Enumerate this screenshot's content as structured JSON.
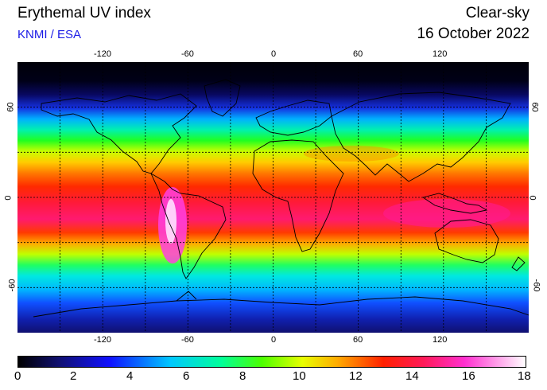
{
  "header": {
    "title": "Erythemal UV index",
    "subtitle": "KNMI / ESA",
    "mode": "Clear-sky",
    "date": "16 October 2022"
  },
  "map": {
    "lon_ticks": [
      "-120",
      "-60",
      "0",
      "60",
      "120"
    ],
    "lat_ticks": [
      "60",
      "0",
      "-60"
    ],
    "lon_range": [
      -180,
      180
    ],
    "lat_range": [
      -90,
      90
    ],
    "grid": true,
    "grid_step_lon": 30,
    "grid_step_lat": 30
  },
  "colorbar": {
    "labels": [
      "0",
      "2",
      "4",
      "6",
      "8",
      "10",
      "12",
      "14",
      "16",
      "18"
    ],
    "range": [
      0,
      18
    ],
    "colors": [
      "#000000",
      "#101070",
      "#1010ff",
      "#00c8ff",
      "#00ff9a",
      "#4cff00",
      "#e8ff00",
      "#ffaa00",
      "#ff2000",
      "#ff1a5a",
      "#ff30d0",
      "#ffffff"
    ]
  },
  "colors": {
    "subtitle": "#1a1ae6",
    "band_polar_north": "#000010",
    "band_subpolar_north": "#1020d0",
    "band_mid_north": "#00e070",
    "band_subtropic_north": "#e0ff00",
    "band_tropics": "#ff2a00",
    "band_equator": "#ff1a70",
    "band_mid_south": "#00d0ff",
    "band_antarctic": "#1060ff"
  }
}
